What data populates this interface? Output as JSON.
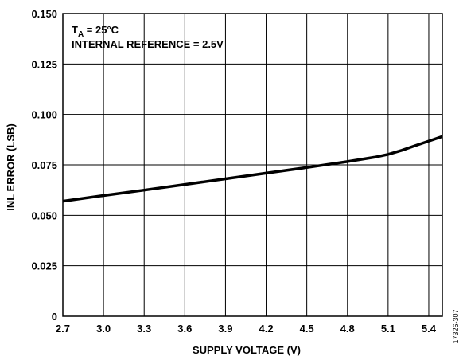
{
  "chart_data": {
    "type": "line",
    "xlabel": "SUPPLY VOLTAGE (V)",
    "ylabel": "INL ERROR (LSB)",
    "xlim": [
      2.7,
      5.5
    ],
    "ylim": [
      0,
      0.15
    ],
    "x_ticks": [
      2.7,
      3.0,
      3.3,
      3.6,
      3.9,
      4.2,
      4.5,
      4.8,
      5.1,
      5.4
    ],
    "x_tick_labels": [
      "2.7",
      "3.0",
      "3.3",
      "3.6",
      "3.9",
      "4.2",
      "4.5",
      "4.8",
      "5.1",
      "5.4"
    ],
    "y_ticks": [
      0,
      0.025,
      0.05,
      0.075,
      0.1,
      0.125,
      0.15
    ],
    "y_tick_labels": [
      "0",
      "0.025",
      "0.050",
      "0.075",
      "0.100",
      "0.125",
      "0.150"
    ],
    "grid": true,
    "annotations": {
      "line1_main": "T",
      "line1_sub": "A",
      "line1_rest": " = 25°C",
      "line2": "INTERNAL REFERENCE = 2.5V"
    },
    "figure_id": "17326-307",
    "series": [
      {
        "x": [
          2.7,
          3.0,
          3.3,
          3.6,
          3.9,
          4.2,
          4.5,
          4.8,
          5.0,
          5.1,
          5.2,
          5.3,
          5.4,
          5.5
        ],
        "y": [
          0.057,
          0.0598,
          0.0625,
          0.0653,
          0.0681,
          0.0709,
          0.0737,
          0.0766,
          0.0788,
          0.0802,
          0.0822,
          0.0845,
          0.0868,
          0.0891
        ]
      }
    ]
  }
}
